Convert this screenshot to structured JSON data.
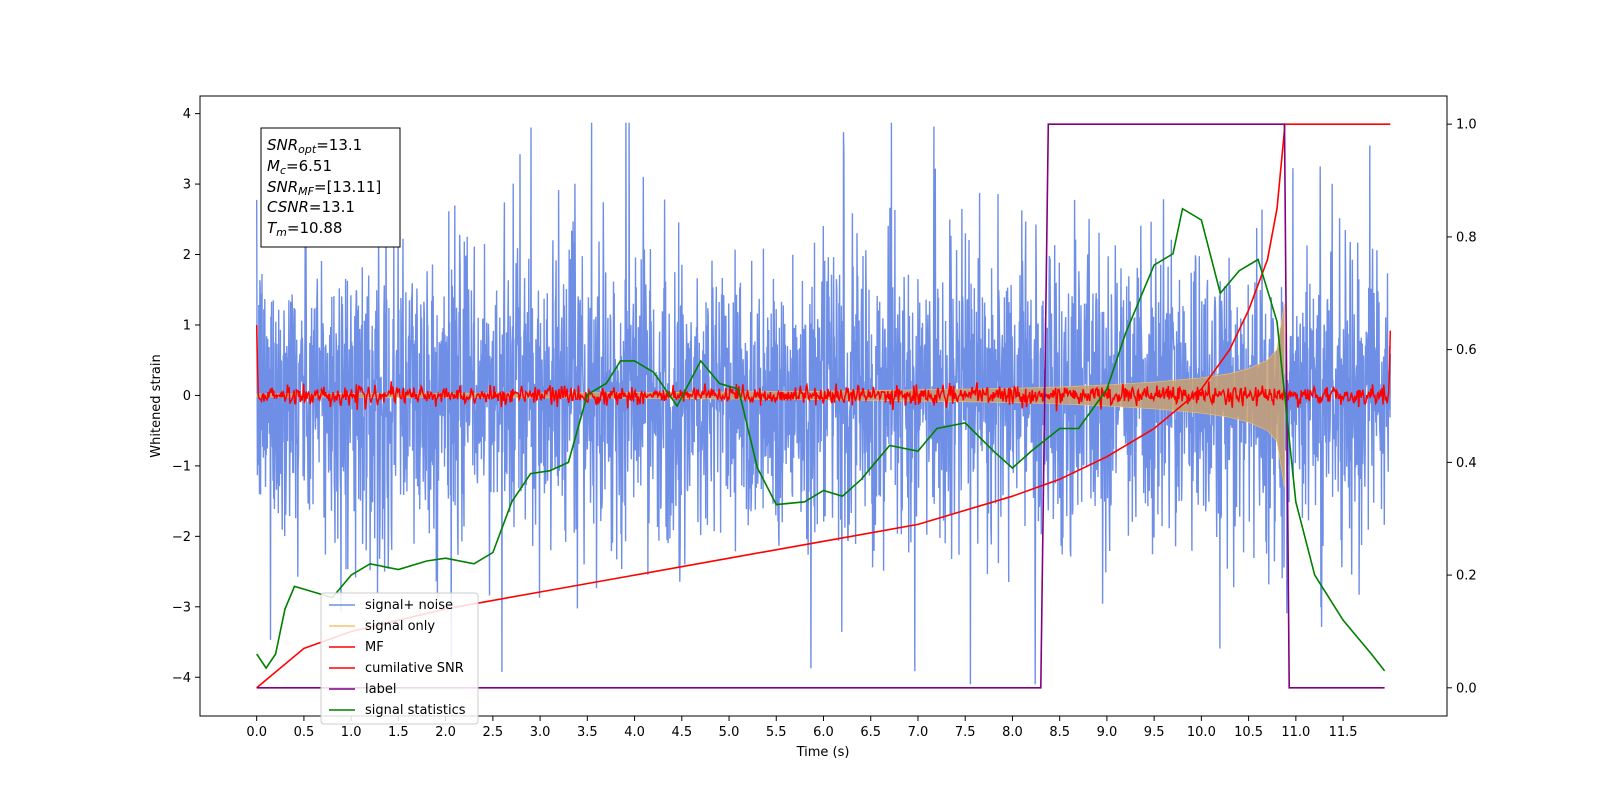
{
  "chart_data": {
    "type": "line",
    "xlabel": "Time (s)",
    "ylabel": "Whitened strain",
    "xlim": [
      -0.6,
      12.6
    ],
    "ylim": [
      -4.55,
      4.25
    ],
    "ylim_right": [
      -0.05,
      1.05
    ],
    "xticks": [
      "0.0",
      "0.5",
      "1.0",
      "1.5",
      "2.0",
      "2.5",
      "3.0",
      "3.5",
      "4.0",
      "4.5",
      "5.0",
      "5.5",
      "6.0",
      "6.5",
      "7.0",
      "7.5",
      "8.0",
      "8.5",
      "9.0",
      "9.5",
      "10.0",
      "10.5",
      "11.0",
      "11.5"
    ],
    "yticks_left": [
      "4",
      "3",
      "2",
      "1",
      "0",
      "−1",
      "−2",
      "−3",
      "−4"
    ],
    "yticks_right": [
      "1.0",
      "0.8",
      "0.6",
      "0.4",
      "0.2",
      "0.0"
    ],
    "grid": false,
    "legend_position": "lower-left",
    "legend": [
      "signal+ noise",
      "signal only",
      "MF",
      "cumilative SNR",
      "label",
      "signal statistics"
    ],
    "annotation": {
      "snr_opt": {
        "base": "SNR",
        "sub": "opt",
        "value": "=13.1"
      },
      "mc": {
        "base": "M",
        "sub": "c",
        "value": "=6.51"
      },
      "snr_mf": {
        "base": "SNR",
        "sub": "MF",
        "value": "=[13.11]"
      },
      "csnr": {
        "base": "CSNR",
        "sub": "",
        "value": "=13.1"
      },
      "tm": {
        "base": "T",
        "sub": "m",
        "value": "=10.88"
      }
    },
    "series": [
      {
        "name": "signal+ noise",
        "color": "#6f8fe6",
        "axis": "left",
        "description_values": {
          "x_start": 0.0,
          "x_end": 12.0,
          "typical_range": [
            -2.3,
            2.3
          ],
          "peak_max": 3.87,
          "peak_min": -4.1
        }
      },
      {
        "name": "signal only",
        "color": "#f5c46a",
        "axis": "left",
        "envelope": {
          "x": [
            0,
            2,
            4,
            6,
            7,
            8,
            8.5,
            9,
            9.5,
            10,
            10.3,
            10.5,
            10.7,
            10.8,
            10.88
          ],
          "amp": [
            0.02,
            0.03,
            0.04,
            0.06,
            0.08,
            0.1,
            0.12,
            0.15,
            0.19,
            0.25,
            0.31,
            0.38,
            0.5,
            0.65,
            1.3
          ]
        }
      },
      {
        "name": "MF",
        "color": "#ff0000",
        "axis": "left",
        "description_values": {
          "x_start": 0.0,
          "x_end": 12.0,
          "baseline": 0.0,
          "noise_amp": 0.12,
          "start_value": 1.0,
          "end_value": 0.92
        }
      },
      {
        "name": "cumilative SNR",
        "color": "#ff0000",
        "axis": "right",
        "x": [
          0,
          0.5,
          1,
          2,
          3,
          4,
          5,
          6,
          7,
          8,
          8.5,
          9,
          9.5,
          10,
          10.3,
          10.5,
          10.7,
          10.8,
          10.88,
          10.88,
          12.0
        ],
        "y": [
          0.0,
          0.07,
          0.1,
          0.14,
          0.17,
          0.2,
          0.23,
          0.26,
          0.29,
          0.34,
          0.37,
          0.41,
          0.46,
          0.53,
          0.6,
          0.67,
          0.76,
          0.85,
          0.99,
          1.0,
          1.0
        ]
      },
      {
        "name": "label",
        "color": "#800080",
        "axis": "right",
        "x": [
          0.0,
          8.3,
          8.38,
          10.88,
          10.93,
          11.94
        ],
        "y": [
          0.0,
          0.0,
          1.0,
          1.0,
          0.0,
          0.0
        ]
      },
      {
        "name": "signal statistics",
        "color": "#008000",
        "axis": "right",
        "x": [
          0.0,
          0.1,
          0.2,
          0.3,
          0.4,
          0.6,
          0.8,
          1.0,
          1.2,
          1.5,
          1.8,
          2.0,
          2.3,
          2.5,
          2.7,
          2.9,
          3.1,
          3.3,
          3.5,
          3.7,
          3.85,
          4.0,
          4.2,
          4.45,
          4.7,
          4.9,
          5.1,
          5.3,
          5.5,
          5.8,
          6.0,
          6.2,
          6.4,
          6.7,
          7.0,
          7.2,
          7.5,
          7.8,
          8.0,
          8.2,
          8.5,
          8.7,
          9.0,
          9.2,
          9.5,
          9.7,
          9.8,
          10.0,
          10.2,
          10.4,
          10.6,
          10.8,
          11.0,
          11.2,
          11.5,
          11.8,
          11.94
        ],
        "y": [
          0.06,
          0.035,
          0.06,
          0.14,
          0.18,
          0.17,
          0.16,
          0.2,
          0.22,
          0.21,
          0.225,
          0.23,
          0.22,
          0.24,
          0.33,
          0.38,
          0.385,
          0.4,
          0.52,
          0.54,
          0.58,
          0.58,
          0.56,
          0.5,
          0.58,
          0.54,
          0.53,
          0.39,
          0.325,
          0.33,
          0.35,
          0.34,
          0.37,
          0.43,
          0.42,
          0.46,
          0.47,
          0.42,
          0.39,
          0.42,
          0.46,
          0.46,
          0.53,
          0.63,
          0.75,
          0.77,
          0.85,
          0.83,
          0.7,
          0.74,
          0.76,
          0.65,
          0.33,
          0.2,
          0.12,
          0.06,
          0.03
        ]
      }
    ]
  }
}
